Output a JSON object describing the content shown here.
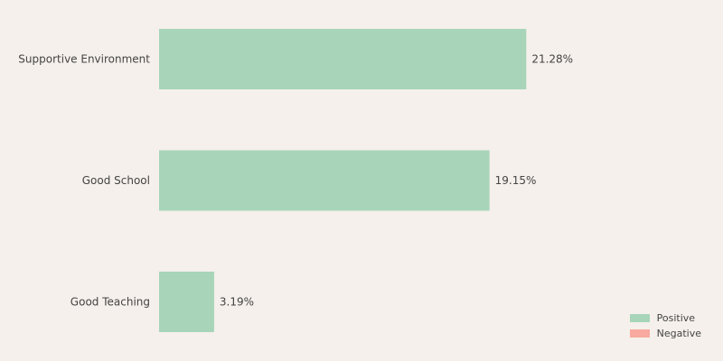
{
  "chart_data": {
    "type": "bar",
    "orientation": "horizontal",
    "categories": [
      "Supportive Environment",
      "Good School",
      "Good Teaching"
    ],
    "values": [
      21.28,
      19.15,
      3.19
    ],
    "value_labels": [
      "21.28%",
      "19.15%",
      "3.19%"
    ],
    "xlim": [
      0,
      32
    ],
    "title": "",
    "xlabel": "",
    "ylabel": "",
    "grid": false,
    "legend": {
      "placement": "bottom-right",
      "entries": [
        {
          "name": "Positive",
          "color": "#a8d5ba"
        },
        {
          "name": "Negative",
          "color": "#f8a9a0"
        }
      ]
    },
    "bar_color": "#a8d5ba"
  }
}
